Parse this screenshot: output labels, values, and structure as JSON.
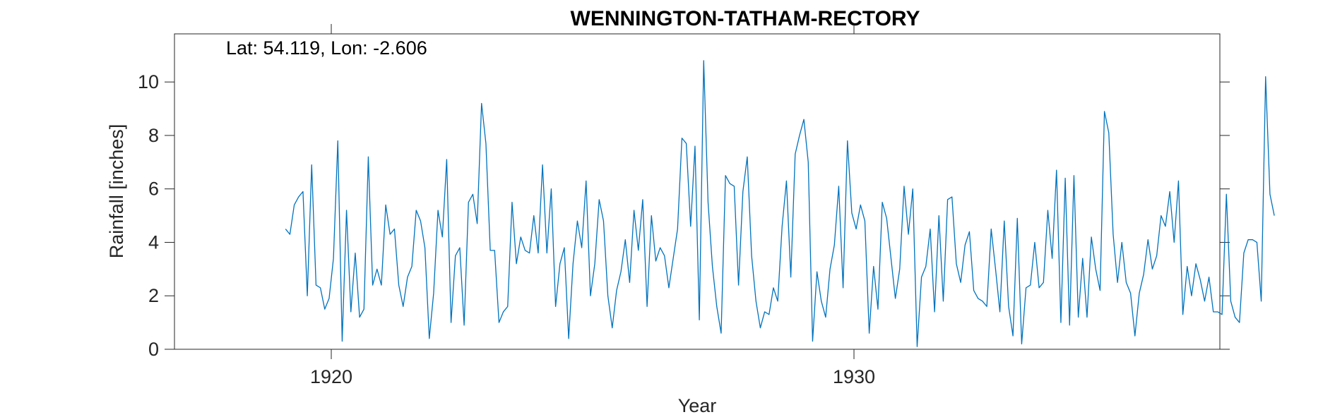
{
  "chart_data": {
    "type": "line",
    "title": "WENNINGTON-TATHAM-RECTORY",
    "xlabel": "Year",
    "ylabel": "Rainfall [inches]",
    "annotation": "Lat: 54.119, Lon: -2.606",
    "xlim": [
      1917.0,
      1937.0
    ],
    "ylim": [
      0,
      11.8
    ],
    "xticks": [
      {
        "value": 1920,
        "label": "1920"
      },
      {
        "value": 1930,
        "label": "1930"
      }
    ],
    "yticks": [
      {
        "value": 0,
        "label": "0"
      },
      {
        "value": 2,
        "label": "2"
      },
      {
        "value": 4,
        "label": "4"
      },
      {
        "value": 6,
        "label": "6"
      },
      {
        "value": 8,
        "label": "8"
      },
      {
        "value": 10,
        "label": "10"
      }
    ],
    "grid": false,
    "line_color": "#0072BD",
    "start_year": 1919.125,
    "step_years": 0.0833333,
    "values": [
      4.5,
      4.3,
      5.4,
      5.7,
      5.9,
      2.0,
      6.9,
      2.4,
      2.3,
      1.5,
      1.9,
      3.4,
      7.8,
      0.3,
      5.2,
      1.4,
      3.6,
      1.2,
      1.5,
      7.2,
      2.4,
      3.0,
      2.4,
      5.4,
      4.3,
      4.5,
      2.4,
      1.6,
      2.7,
      3.1,
      5.2,
      4.8,
      3.8,
      0.4,
      2.1,
      5.2,
      4.2,
      7.1,
      1.0,
      3.5,
      3.8,
      0.9,
      5.5,
      5.8,
      4.7,
      9.2,
      7.7,
      3.7,
      3.7,
      1.0,
      1.4,
      1.6,
      5.5,
      3.2,
      4.2,
      3.7,
      3.6,
      5.0,
      3.6,
      6.9,
      3.6,
      6.0,
      1.6,
      3.2,
      3.8,
      0.4,
      3.2,
      4.8,
      3.8,
      6.3,
      2.0,
      3.2,
      5.6,
      4.8,
      2.0,
      0.8,
      2.2,
      2.9,
      4.1,
      2.5,
      5.2,
      3.7,
      5.6,
      1.6,
      5.0,
      3.3,
      3.8,
      3.5,
      2.3,
      3.4,
      4.5,
      7.9,
      7.7,
      4.6,
      7.6,
      1.1,
      10.8,
      5.5,
      3.1,
      1.6,
      0.6,
      6.5,
      6.2,
      6.1,
      2.4,
      5.9,
      7.2,
      3.5,
      1.8,
      0.8,
      1.4,
      1.3,
      2.3,
      1.8,
      4.6,
      6.3,
      2.7,
      7.3,
      8.0,
      8.6,
      7.0,
      0.3,
      2.9,
      1.8,
      1.2,
      3.0,
      3.9,
      6.1,
      2.3,
      7.8,
      5.1,
      4.5,
      5.4,
      4.8,
      0.6,
      3.1,
      1.5,
      5.5,
      4.9,
      3.4,
      1.9,
      3.0,
      6.1,
      4.3,
      6.0,
      0.1,
      2.7,
      3.1,
      4.5,
      1.4,
      5.0,
      1.8,
      5.6,
      5.7,
      3.2,
      2.5,
      3.9,
      4.4,
      2.2,
      1.9,
      1.8,
      1.6,
      4.5,
      3.0,
      1.4,
      4.8,
      1.6,
      0.5,
      4.9,
      0.2,
      2.3,
      2.4,
      4.0,
      2.3,
      2.5,
      5.2,
      3.4,
      6.7,
      1.0,
      6.4,
      0.9,
      6.5,
      1.2,
      3.4,
      1.2,
      4.2,
      3.0,
      2.2,
      8.9,
      8.1,
      4.3,
      2.5,
      4.0,
      2.5,
      2.1,
      0.5,
      2.1,
      2.8,
      4.1,
      3.0,
      3.5,
      5.0,
      4.6,
      5.9,
      4.0,
      6.3,
      1.3,
      3.1,
      2.0,
      3.2,
      2.6,
      1.8,
      2.7,
      1.4,
      1.4,
      1.3,
      5.8,
      1.8,
      1.2,
      1.0,
      3.6,
      4.1,
      4.1,
      4.0,
      1.8,
      10.2,
      5.8,
      5.0
    ]
  }
}
